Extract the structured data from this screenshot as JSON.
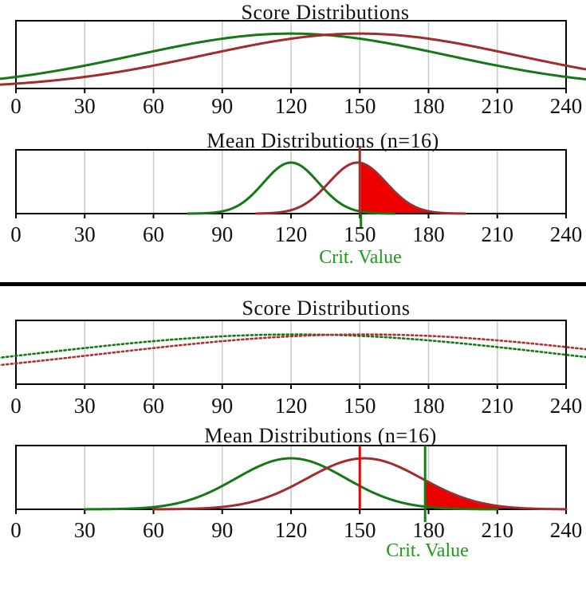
{
  "page": {
    "background": "#ffffff"
  },
  "divider": {
    "color": "#000000"
  },
  "colors": {
    "green_curve": "#157815",
    "dark_red_curve": "#a02c2c",
    "dotted_red_curve": "#ad3030",
    "bright_red": "#ee0000",
    "green_line": "#128012",
    "crit_text_green": "#1c9a1c",
    "gridline": "#c9c9c9",
    "axis": "#000000",
    "label_text": "#111111"
  },
  "chart_data": [
    {
      "type": "line",
      "title": "Score Distributions",
      "xlabel": "",
      "ylabel": "",
      "grid": true,
      "x_axis": {
        "min": 0,
        "max": 240,
        "tick_step": 30,
        "ticks": [
          0,
          30,
          60,
          90,
          120,
          150,
          180,
          210,
          240
        ],
        "gridlines": [
          30,
          60,
          90,
          120,
          150,
          180,
          210
        ]
      },
      "series": [
        {
          "name": "green-score-curve",
          "color": "#157815",
          "line_style": "solid",
          "distribution": "normal",
          "mean": 120,
          "sd": 68,
          "peak_fraction": 0.81,
          "draw_from": -8,
          "draw_to": 250
        },
        {
          "name": "red-score-curve",
          "color": "#a02c2c",
          "line_style": "solid",
          "distribution": "normal",
          "mean": 150,
          "sd": 68,
          "peak_fraction": 0.81,
          "draw_from": -8,
          "draw_to": 250
        }
      ]
    },
    {
      "type": "area",
      "title": "Mean Distributions (n=16)",
      "crit_label": "Crit. Value",
      "crit_value": 150.5,
      "grid": true,
      "x_axis": {
        "min": 0,
        "max": 240,
        "tick_step": 30,
        "ticks": [
          0,
          30,
          60,
          90,
          120,
          150,
          180,
          210,
          240
        ],
        "gridlines": [
          30,
          60,
          90,
          120,
          150,
          180,
          210
        ]
      },
      "series": [
        {
          "name": "green-mean-curve",
          "color": "#157815",
          "line_style": "solid",
          "distribution": "normal",
          "mean": 120,
          "sd": 12,
          "peak_fraction": 0.8,
          "draw_from": 75,
          "draw_to": 165
        },
        {
          "name": "red-mean-curve",
          "color": "#a02c2c",
          "line_style": "solid",
          "distribution": "normal",
          "mean": 149,
          "sd": 12.5,
          "peak_fraction": 0.8,
          "draw_from": 105,
          "draw_to": 196
        }
      ],
      "shaded_region": {
        "series": 1,
        "from": 150.5,
        "to": 196,
        "color": "#ee0000"
      },
      "lines": [
        {
          "name": "red-mean-line",
          "value": 150,
          "color": "#a02c2c",
          "extent": "above-box-to-axis"
        },
        {
          "name": "crit-value-line",
          "value": 150.5,
          "color": "#128012",
          "extent": "axis-to-below"
        }
      ]
    },
    {
      "type": "line",
      "title": "Score Distributions",
      "xlabel": "",
      "ylabel": "",
      "grid": true,
      "x_axis": {
        "min": 0,
        "max": 240,
        "tick_step": 30,
        "ticks": [
          0,
          30,
          60,
          90,
          120,
          150,
          180,
          210,
          240
        ],
        "gridlines": [
          30,
          60,
          90,
          120,
          150,
          180,
          210
        ]
      },
      "series": [
        {
          "name": "green-score-curve-dotted",
          "color": "#157815",
          "line_style": "dotted",
          "distribution": "normal",
          "mean": 122,
          "sd": 115,
          "peak_fraction": 0.78,
          "draw_from": -8,
          "draw_to": 250
        },
        {
          "name": "red-score-curve-dotted",
          "color": "#ad3030",
          "line_style": "dotted",
          "distribution": "normal",
          "mean": 152,
          "sd": 115,
          "peak_fraction": 0.78,
          "draw_from": -8,
          "draw_to": 250
        }
      ]
    },
    {
      "type": "area",
      "title": "Mean Distributions (n=16)",
      "crit_label": "Crit. Value",
      "crit_value": 178.5,
      "grid": true,
      "x_axis": {
        "min": 0,
        "max": 240,
        "tick_step": 30,
        "ticks": [
          0,
          30,
          60,
          90,
          120,
          150,
          180,
          210,
          240
        ],
        "gridlines": [
          30,
          60,
          90,
          120,
          150,
          180,
          210
        ]
      },
      "series": [
        {
          "name": "green-mean-curve",
          "color": "#157815",
          "line_style": "solid",
          "distribution": "normal",
          "mean": 120,
          "sd": 24,
          "peak_fraction": 0.8,
          "draw_from": 30,
          "draw_to": 210
        },
        {
          "name": "red-mean-curve",
          "color": "#a02c2c",
          "line_style": "solid",
          "distribution": "normal",
          "mean": 152,
          "sd": 25,
          "peak_fraction": 0.8,
          "draw_from": 60,
          "draw_to": 240
        }
      ],
      "shaded_region": {
        "series": 1,
        "from": 178.5,
        "to": 240,
        "color": "#ee0000"
      },
      "lines": [
        {
          "name": "red-mean-line",
          "value": 150,
          "color": "#ee0000",
          "extent": "box"
        },
        {
          "name": "crit-value-line",
          "value": 178.5,
          "color": "#128012",
          "extent": "box-to-below"
        }
      ]
    }
  ]
}
